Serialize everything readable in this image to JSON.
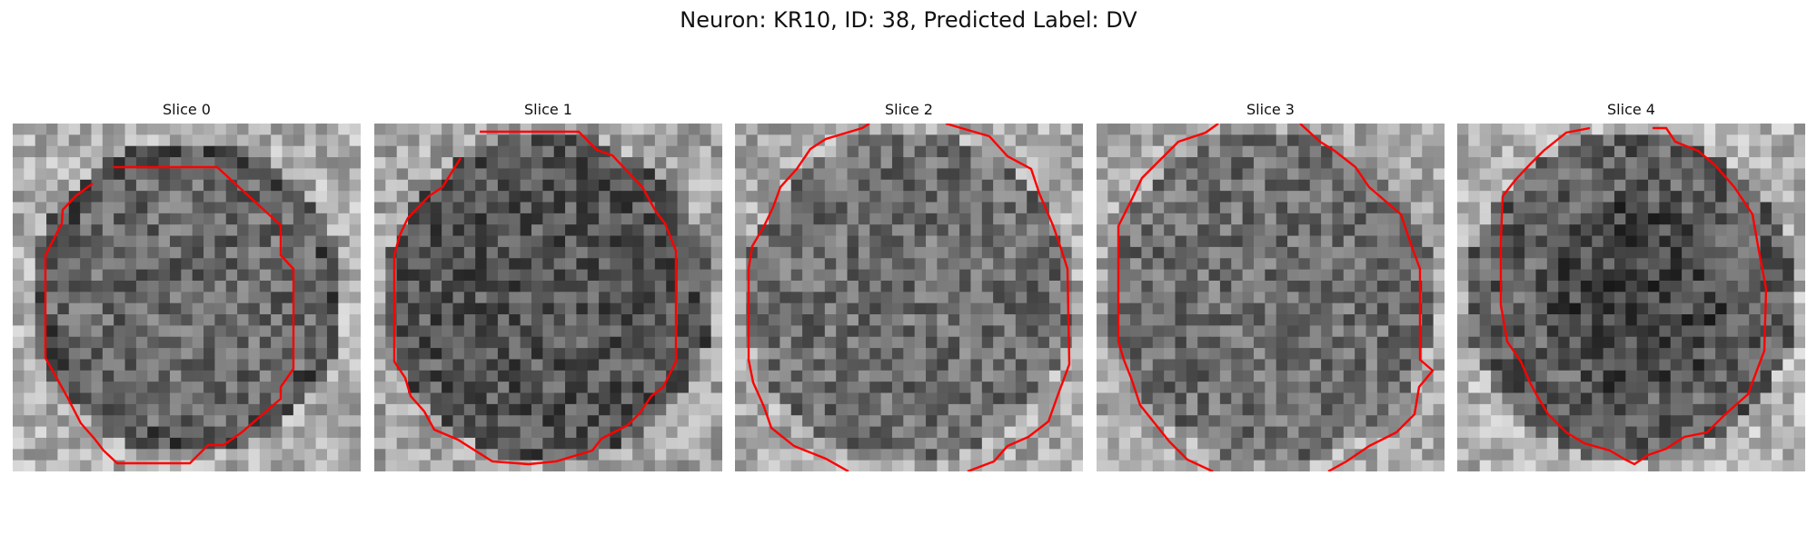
{
  "figure": {
    "title": "Neuron: KR10, ID: 38, Predicted Label: DV"
  },
  "panels": [
    {
      "label": "Slice 0",
      "seed": 11,
      "tone": "light-border"
    },
    {
      "label": "Slice 1",
      "seed": 23,
      "tone": "dark"
    },
    {
      "label": "Slice 2",
      "seed": 37,
      "tone": "mid"
    },
    {
      "label": "Slice 3",
      "seed": 53,
      "tone": "mid"
    },
    {
      "label": "Slice 4",
      "seed": 71,
      "tone": "dark-center"
    }
  ],
  "colors": {
    "outline": "#ff0000"
  }
}
